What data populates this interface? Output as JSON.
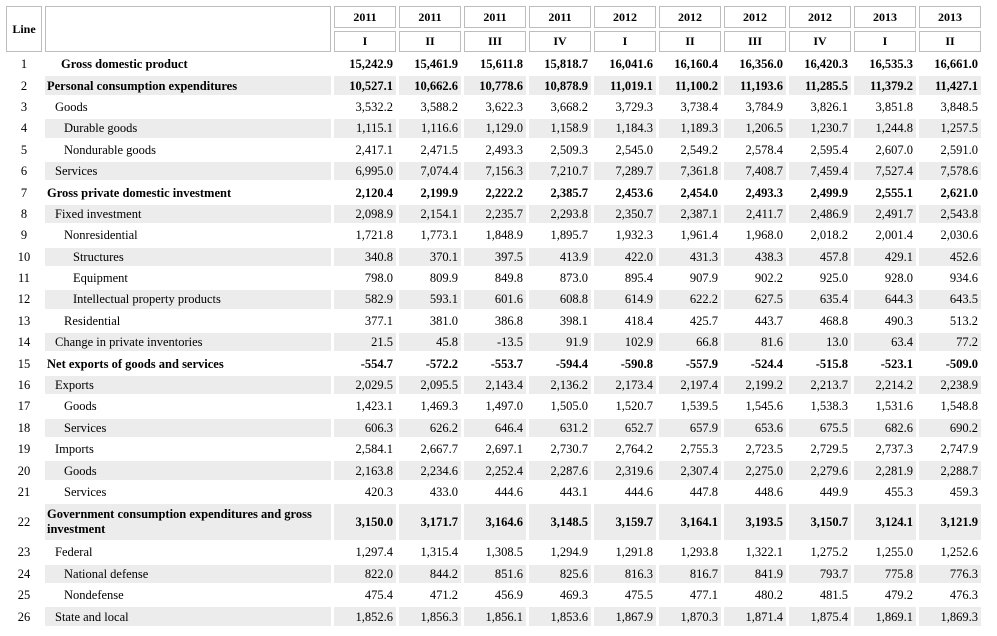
{
  "header": {
    "line_label": "Line",
    "years": [
      "2011",
      "2011",
      "2011",
      "2011",
      "2012",
      "2012",
      "2012",
      "2012",
      "2013",
      "2013"
    ],
    "quarters": [
      "I",
      "II",
      "III",
      "IV",
      "I",
      "II",
      "III",
      "IV",
      "I",
      "II"
    ]
  },
  "rows": [
    {
      "line": "1",
      "label": "Gross domestic product",
      "bold": true,
      "indent": "ind0",
      "values": [
        "15,242.9",
        "15,461.9",
        "15,611.8",
        "15,818.7",
        "16,041.6",
        "16,160.4",
        "16,356.0",
        "16,420.3",
        "16,535.3",
        "16,661.0"
      ]
    },
    {
      "line": "2",
      "label": "Personal consumption expenditures",
      "bold": true,
      "indent": "ind0b",
      "values": [
        "10,527.1",
        "10,662.6",
        "10,778.6",
        "10,878.9",
        "11,019.1",
        "11,100.2",
        "11,193.6",
        "11,285.5",
        "11,379.2",
        "11,427.1"
      ]
    },
    {
      "line": "3",
      "label": "Goods",
      "bold": false,
      "indent": "ind1",
      "values": [
        "3,532.2",
        "3,588.2",
        "3,622.3",
        "3,668.2",
        "3,729.3",
        "3,738.4",
        "3,784.9",
        "3,826.1",
        "3,851.8",
        "3,848.5"
      ]
    },
    {
      "line": "4",
      "label": "Durable goods",
      "bold": false,
      "indent": "ind2",
      "values": [
        "1,115.1",
        "1,116.6",
        "1,129.0",
        "1,158.9",
        "1,184.3",
        "1,189.3",
        "1,206.5",
        "1,230.7",
        "1,244.8",
        "1,257.5"
      ]
    },
    {
      "line": "5",
      "label": "Nondurable goods",
      "bold": false,
      "indent": "ind2",
      "values": [
        "2,417.1",
        "2,471.5",
        "2,493.3",
        "2,509.3",
        "2,545.0",
        "2,549.2",
        "2,578.4",
        "2,595.4",
        "2,607.0",
        "2,591.0"
      ]
    },
    {
      "line": "6",
      "label": "Services",
      "bold": false,
      "indent": "ind1",
      "values": [
        "6,995.0",
        "7,074.4",
        "7,156.3",
        "7,210.7",
        "7,289.7",
        "7,361.8",
        "7,408.7",
        "7,459.4",
        "7,527.4",
        "7,578.6"
      ]
    },
    {
      "line": "7",
      "label": "Gross private domestic investment",
      "bold": true,
      "indent": "ind0b",
      "values": [
        "2,120.4",
        "2,199.9",
        "2,222.2",
        "2,385.7",
        "2,453.6",
        "2,454.0",
        "2,493.3",
        "2,499.9",
        "2,555.1",
        "2,621.0"
      ]
    },
    {
      "line": "8",
      "label": "Fixed investment",
      "bold": false,
      "indent": "ind1",
      "values": [
        "2,098.9",
        "2,154.1",
        "2,235.7",
        "2,293.8",
        "2,350.7",
        "2,387.1",
        "2,411.7",
        "2,486.9",
        "2,491.7",
        "2,543.8"
      ]
    },
    {
      "line": "9",
      "label": "Nonresidential",
      "bold": false,
      "indent": "ind2",
      "values": [
        "1,721.8",
        "1,773.1",
        "1,848.9",
        "1,895.7",
        "1,932.3",
        "1,961.4",
        "1,968.0",
        "2,018.2",
        "2,001.4",
        "2,030.6"
      ]
    },
    {
      "line": "10",
      "label": "Structures",
      "bold": false,
      "indent": "ind3",
      "values": [
        "340.8",
        "370.1",
        "397.5",
        "413.9",
        "422.0",
        "431.3",
        "438.3",
        "457.8",
        "429.1",
        "452.6"
      ]
    },
    {
      "line": "11",
      "label": "Equipment",
      "bold": false,
      "indent": "ind3",
      "values": [
        "798.0",
        "809.9",
        "849.8",
        "873.0",
        "895.4",
        "907.9",
        "902.2",
        "925.0",
        "928.0",
        "934.6"
      ]
    },
    {
      "line": "12",
      "label": "Intellectual property products",
      "bold": false,
      "indent": "ind3",
      "values": [
        "582.9",
        "593.1",
        "601.6",
        "608.8",
        "614.9",
        "622.2",
        "627.5",
        "635.4",
        "644.3",
        "643.5"
      ]
    },
    {
      "line": "13",
      "label": "Residential",
      "bold": false,
      "indent": "ind2",
      "values": [
        "377.1",
        "381.0",
        "386.8",
        "398.1",
        "418.4",
        "425.7",
        "443.7",
        "468.8",
        "490.3",
        "513.2"
      ]
    },
    {
      "line": "14",
      "label": "Change in private inventories",
      "bold": false,
      "indent": "ind1",
      "values": [
        "21.5",
        "45.8",
        "-13.5",
        "91.9",
        "102.9",
        "66.8",
        "81.6",
        "13.0",
        "63.4",
        "77.2"
      ]
    },
    {
      "line": "15",
      "label": "Net exports of goods and services",
      "bold": true,
      "indent": "ind0b",
      "values": [
        "-554.7",
        "-572.2",
        "-553.7",
        "-594.4",
        "-590.8",
        "-557.9",
        "-524.4",
        "-515.8",
        "-523.1",
        "-509.0"
      ]
    },
    {
      "line": "16",
      "label": "Exports",
      "bold": false,
      "indent": "ind1",
      "values": [
        "2,029.5",
        "2,095.5",
        "2,143.4",
        "2,136.2",
        "2,173.4",
        "2,197.4",
        "2,199.2",
        "2,213.7",
        "2,214.2",
        "2,238.9"
      ]
    },
    {
      "line": "17",
      "label": "Goods",
      "bold": false,
      "indent": "ind2",
      "values": [
        "1,423.1",
        "1,469.3",
        "1,497.0",
        "1,505.0",
        "1,520.7",
        "1,539.5",
        "1,545.6",
        "1,538.3",
        "1,531.6",
        "1,548.8"
      ]
    },
    {
      "line": "18",
      "label": "Services",
      "bold": false,
      "indent": "ind2",
      "values": [
        "606.3",
        "626.2",
        "646.4",
        "631.2",
        "652.7",
        "657.9",
        "653.6",
        "675.5",
        "682.6",
        "690.2"
      ]
    },
    {
      "line": "19",
      "label": "Imports",
      "bold": false,
      "indent": "ind1",
      "values": [
        "2,584.1",
        "2,667.7",
        "2,697.1",
        "2,730.7",
        "2,764.2",
        "2,755.3",
        "2,723.5",
        "2,729.5",
        "2,737.3",
        "2,747.9"
      ]
    },
    {
      "line": "20",
      "label": "Goods",
      "bold": false,
      "indent": "ind2",
      "values": [
        "2,163.8",
        "2,234.6",
        "2,252.4",
        "2,287.6",
        "2,319.6",
        "2,307.4",
        "2,275.0",
        "2,279.6",
        "2,281.9",
        "2,288.7"
      ]
    },
    {
      "line": "21",
      "label": "Services",
      "bold": false,
      "indent": "ind2",
      "values": [
        "420.3",
        "433.0",
        "444.6",
        "443.1",
        "444.6",
        "447.8",
        "448.6",
        "449.9",
        "455.3",
        "459.3"
      ]
    },
    {
      "line": "22",
      "label": "Government consumption expenditures and gross investment",
      "bold": true,
      "indent": "ind0b",
      "values": [
        "3,150.0",
        "3,171.7",
        "3,164.6",
        "3,148.5",
        "3,159.7",
        "3,164.1",
        "3,193.5",
        "3,150.7",
        "3,124.1",
        "3,121.9"
      ]
    },
    {
      "line": "23",
      "label": "Federal",
      "bold": false,
      "indent": "ind1",
      "values": [
        "1,297.4",
        "1,315.4",
        "1,308.5",
        "1,294.9",
        "1,291.8",
        "1,293.8",
        "1,322.1",
        "1,275.2",
        "1,255.0",
        "1,252.6"
      ]
    },
    {
      "line": "24",
      "label": "National defense",
      "bold": false,
      "indent": "ind2",
      "values": [
        "822.0",
        "844.2",
        "851.6",
        "825.6",
        "816.3",
        "816.7",
        "841.9",
        "793.7",
        "775.8",
        "776.3"
      ]
    },
    {
      "line": "25",
      "label": "Nondefense",
      "bold": false,
      "indent": "ind2",
      "values": [
        "475.4",
        "471.2",
        "456.9",
        "469.3",
        "475.5",
        "477.1",
        "480.2",
        "481.5",
        "479.2",
        "476.3"
      ]
    },
    {
      "line": "26",
      "label": "State and local",
      "bold": false,
      "indent": "ind1",
      "values": [
        "1,852.6",
        "1,856.3",
        "1,856.1",
        "1,853.6",
        "1,867.9",
        "1,870.3",
        "1,871.4",
        "1,875.4",
        "1,869.1",
        "1,869.3"
      ]
    }
  ]
}
